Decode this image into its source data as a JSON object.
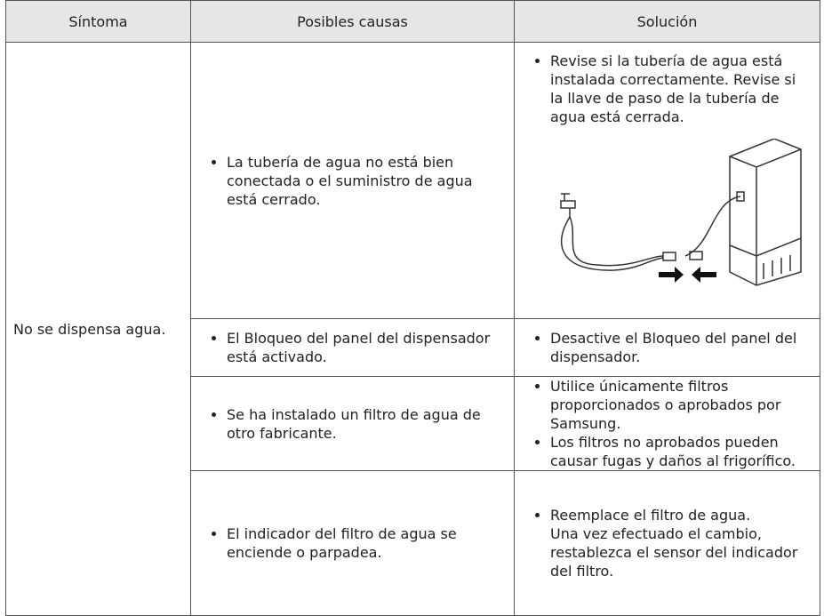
{
  "table": {
    "header": [
      "Síntoma",
      "Posibles causas",
      "Solución"
    ],
    "symptom": "No se dispensa agua.",
    "rows": [
      {
        "cause": "La tubería de agua no está bien conectada o el suministro de agua está cerrado.",
        "solution": [
          [
            "Revise si la tubería de agua está instalada correctamente. Revise si la llave de paso de la tubería de agua está cerrada."
          ]
        ]
      },
      {
        "cause": "El Bloqueo del panel del dispensador está activado.",
        "solution": [
          [
            "Desactive el Bloqueo del panel del dispensador."
          ]
        ]
      },
      {
        "cause": "Se ha instalado un filtro de agua de otro fabricante.",
        "solution": [
          [
            "Utilice únicamente filtros proporcionados o aprobados por Samsung."
          ],
          [
            "Los filtros no aprobados pueden causar fugas y daños al frigorífico."
          ]
        ]
      },
      {
        "cause": "El indicador del filtro de agua se enciende o parpadea.",
        "solution": [
          [
            "Reemplace el filtro de agua.",
            "Una vez efectuado el cambio, restablezca el sensor del indicador del filtro."
          ]
        ]
      }
    ]
  }
}
